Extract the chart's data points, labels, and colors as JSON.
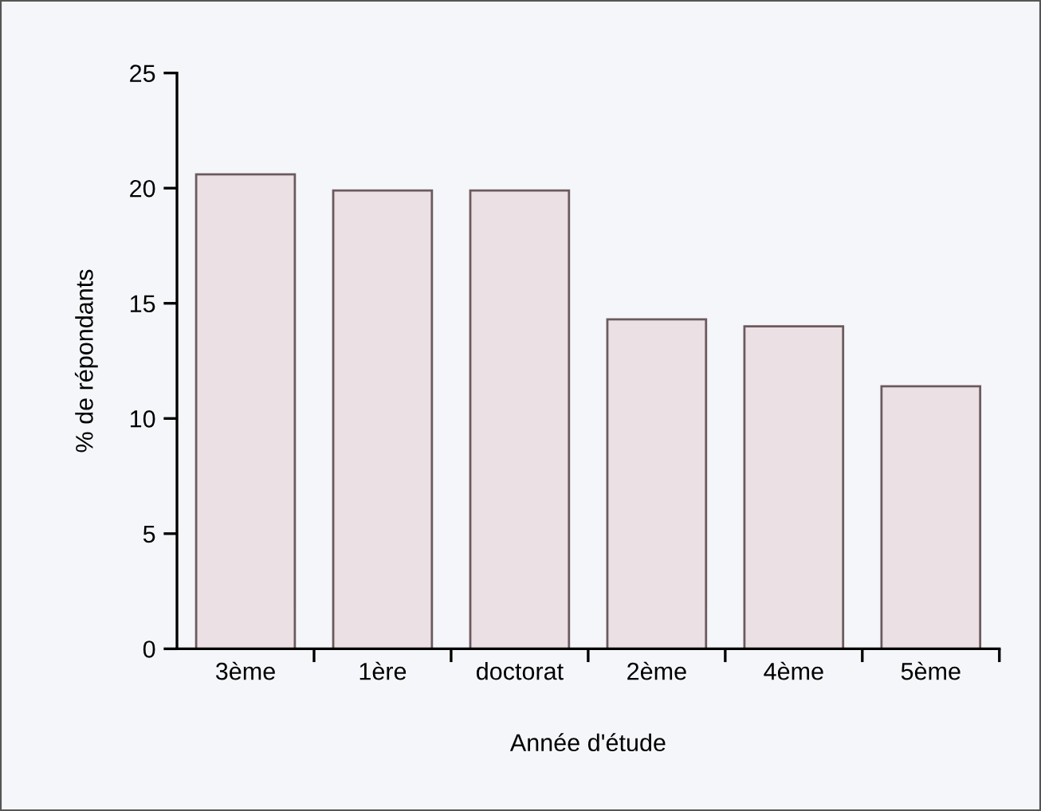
{
  "chart_data": {
    "type": "bar",
    "xlabel": "Année d'étude",
    "ylabel": "% de répondants",
    "categories": [
      "3ème",
      "1ère",
      "doctorat",
      "2ème",
      "4ème",
      "5ème"
    ],
    "values": [
      20.6,
      19.9,
      19.9,
      14.3,
      14.0,
      11.4
    ],
    "color": "#ebe0e3",
    "ylim": [
      0,
      25
    ],
    "yticks": [
      0,
      5,
      10,
      15,
      20,
      25
    ]
  }
}
